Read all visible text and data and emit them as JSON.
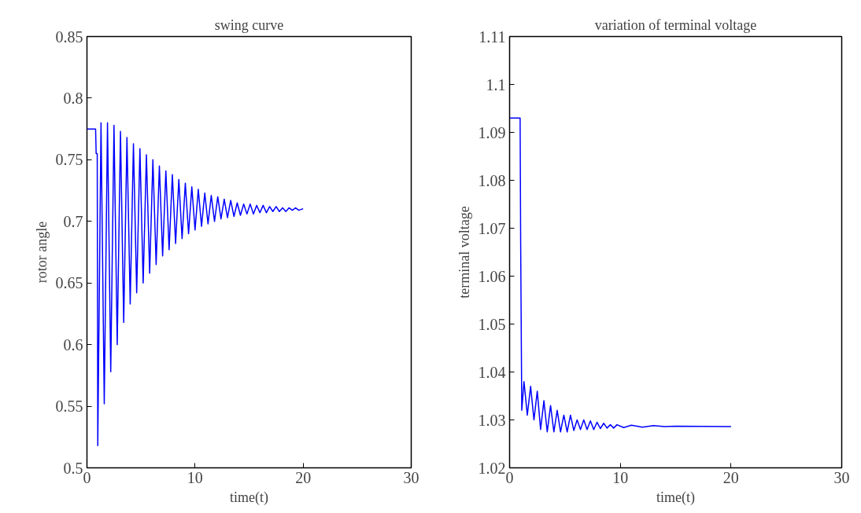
{
  "chart_data": [
    {
      "type": "line",
      "title": "swing curve",
      "xlabel": "time(t)",
      "ylabel": "rotor angle",
      "xlim": [
        0,
        30
      ],
      "ylim": [
        0.5,
        0.85
      ],
      "xticks": [
        0,
        10,
        20,
        30
      ],
      "yticks": [
        0.5,
        0.55,
        0.6,
        0.65,
        0.7,
        0.75,
        0.8,
        0.85
      ],
      "series": [
        {
          "color": "#0000ff",
          "x": [
            0,
            0.8,
            0.85,
            0.95,
            1.0,
            1.3,
            1.6,
            1.9,
            2.2,
            2.5,
            2.8,
            3.1,
            3.4,
            3.7,
            4.0,
            4.3,
            4.6,
            4.9,
            5.2,
            5.5,
            5.8,
            6.1,
            6.4,
            6.7,
            7.0,
            7.3,
            7.6,
            7.9,
            8.2,
            8.5,
            8.8,
            9.1,
            9.4,
            9.7,
            10.0,
            10.3,
            10.6,
            10.9,
            11.2,
            11.5,
            11.8,
            12.1,
            12.4,
            12.7,
            13.0,
            13.3,
            13.6,
            13.9,
            14.2,
            14.5,
            14.8,
            15.1,
            15.4,
            15.7,
            16.0,
            16.3,
            16.6,
            16.9,
            17.2,
            17.5,
            17.8,
            18.1,
            18.4,
            18.7,
            19.0,
            19.3,
            19.6,
            19.9,
            20.0
          ],
          "values": [
            0.775,
            0.775,
            0.755,
            0.755,
            0.518,
            0.78,
            0.552,
            0.78,
            0.578,
            0.778,
            0.6,
            0.773,
            0.618,
            0.768,
            0.633,
            0.763,
            0.642,
            0.759,
            0.65,
            0.754,
            0.658,
            0.75,
            0.665,
            0.745,
            0.672,
            0.741,
            0.677,
            0.738,
            0.682,
            0.734,
            0.686,
            0.731,
            0.69,
            0.728,
            0.693,
            0.726,
            0.696,
            0.723,
            0.698,
            0.721,
            0.7,
            0.72,
            0.702,
            0.718,
            0.703,
            0.717,
            0.704,
            0.715,
            0.705,
            0.714,
            0.706,
            0.714,
            0.706,
            0.713,
            0.707,
            0.713,
            0.707,
            0.712,
            0.708,
            0.712,
            0.708,
            0.711,
            0.708,
            0.711,
            0.709,
            0.711,
            0.709,
            0.71,
            0.71
          ]
        }
      ]
    },
    {
      "type": "line",
      "title": "variation of terminal voltage",
      "xlabel": "time(t)",
      "ylabel": "terminal voltage",
      "xlim": [
        0,
        30
      ],
      "ylim": [
        1.02,
        1.11
      ],
      "xticks": [
        0,
        10,
        20,
        30
      ],
      "yticks": [
        1.02,
        1.03,
        1.04,
        1.05,
        1.06,
        1.07,
        1.08,
        1.09,
        1.1,
        1.11
      ],
      "series": [
        {
          "color": "#0000ff",
          "x": [
            0,
            0.95,
            1.0,
            1.1,
            1.3,
            1.6,
            1.9,
            2.2,
            2.5,
            2.8,
            3.1,
            3.4,
            3.7,
            4.0,
            4.3,
            4.6,
            4.9,
            5.2,
            5.5,
            5.8,
            6.1,
            6.4,
            6.7,
            7.0,
            7.3,
            7.6,
            7.9,
            8.2,
            8.5,
            8.8,
            9.1,
            9.4,
            9.7,
            10.3,
            11,
            12,
            13,
            14,
            15,
            20
          ],
          "values": [
            1.093,
            1.093,
            1.067,
            1.032,
            1.038,
            1.031,
            1.037,
            1.03,
            1.036,
            1.028,
            1.034,
            1.0275,
            1.033,
            1.0275,
            1.032,
            1.0275,
            1.031,
            1.0275,
            1.031,
            1.0278,
            1.03,
            1.028,
            1.03,
            1.028,
            1.0298,
            1.028,
            1.0295,
            1.0282,
            1.0293,
            1.0283,
            1.029,
            1.0283,
            1.029,
            1.0284,
            1.0289,
            1.0285,
            1.0288,
            1.0286,
            1.0287,
            1.0286
          ]
        }
      ]
    }
  ]
}
